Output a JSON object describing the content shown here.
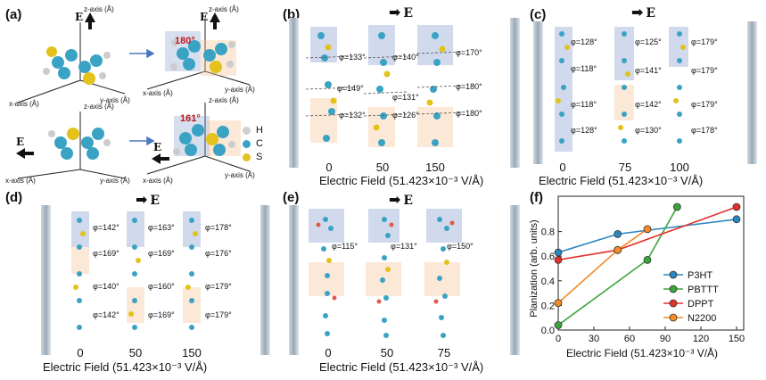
{
  "panel_labels": {
    "a": "(a)",
    "b": "(b)",
    "c": "(c)",
    "d": "(d)",
    "e": "(e)",
    "f": "(f)"
  },
  "field_symbol": "E",
  "x_axis_title": "Electric Field (51.423×10⁻³ V/Å)",
  "panel_a": {
    "axes": {
      "z": "z-axis (Å)",
      "x": "x-axis (Å)",
      "y": "y-axis (Å)"
    },
    "angle_top": "180°",
    "angle_bottom": "161°",
    "legend": [
      "H",
      "C",
      "S"
    ],
    "legend_colors": [
      "#cfcfcf",
      "#3aa3c4",
      "#e3c21b"
    ]
  },
  "panel_b": {
    "ticks": [
      "0",
      "50",
      "150"
    ],
    "angles": [
      "φ=133°",
      "φ=149°",
      "φ=132°",
      "φ=140°",
      "φ=131°",
      "φ=126°",
      "φ=170°",
      "φ=180°",
      "φ=180°"
    ]
  },
  "panel_c": {
    "ticks": [
      "0",
      "75",
      "100"
    ],
    "angles": [
      "φ=128°",
      "φ=118°",
      "φ=118°",
      "φ=128°",
      "φ=125°",
      "φ=141°",
      "φ=142°",
      "φ=130°",
      "φ=179°",
      "φ=179°",
      "φ=179°",
      "φ=178°"
    ]
  },
  "panel_d": {
    "ticks": [
      "0",
      "50",
      "150"
    ],
    "angles": [
      "φ=142°",
      "φ=169°",
      "φ=140°",
      "φ=142°",
      "φ=163°",
      "φ=169°",
      "φ=160°",
      "φ=169°",
      "φ=178°",
      "φ=176°",
      "φ=179°",
      "φ=179°"
    ]
  },
  "panel_e": {
    "ticks": [
      "0",
      "50",
      "75"
    ],
    "angles": [
      "φ=115°",
      "φ=131°",
      "φ=150°"
    ]
  },
  "chart_data": {
    "type": "line",
    "xlabel": "Electric Field (51.423×10⁻³ V/Å)",
    "ylabel": "Planization (arb. units)",
    "xlim": [
      0,
      150
    ],
    "ylim": [
      0.0,
      1.0
    ],
    "xticks": [
      "0",
      "30",
      "60",
      "90",
      "120",
      "150"
    ],
    "yticks": [
      "0.0",
      "0.2",
      "0.4",
      "0.6",
      "0.8"
    ],
    "series": [
      {
        "name": "P3HT",
        "color": "#2e86c1",
        "x": [
          0,
          50,
          150
        ],
        "y": [
          0.63,
          0.78,
          0.9
        ]
      },
      {
        "name": "PBTTT",
        "color": "#3aa53a",
        "x": [
          0,
          75,
          100
        ],
        "y": [
          0.04,
          0.57,
          1.0
        ]
      },
      {
        "name": "DPPT",
        "color": "#e0302a",
        "x": [
          0,
          50,
          150
        ],
        "y": [
          0.57,
          0.65,
          1.0
        ]
      },
      {
        "name": "N2200",
        "color": "#f28c28",
        "x": [
          0,
          50,
          75
        ],
        "y": [
          0.22,
          0.65,
          0.82
        ]
      }
    ],
    "legend_position": "bottom-right"
  }
}
